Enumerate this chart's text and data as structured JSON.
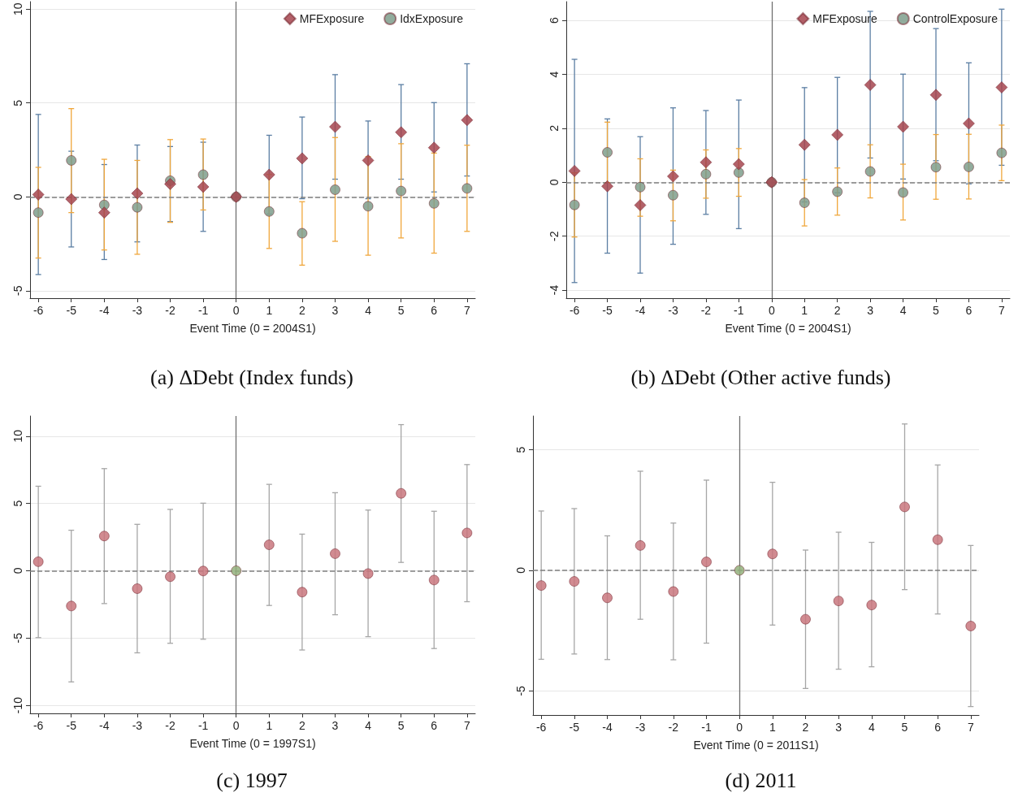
{
  "chart_data": [
    {
      "type": "scatter",
      "title": "(a) ΔDebt (Index funds)",
      "xlabel": "Event Time (0 = 2004S1)",
      "x": [
        -6,
        -5,
        -4,
        -3,
        -2,
        -1,
        0,
        1,
        2,
        3,
        4,
        5,
        6,
        7
      ],
      "xlim": [
        -6.25,
        7.25
      ],
      "xticks": [
        -6,
        -5,
        -4,
        -3,
        -2,
        -1,
        0,
        1,
        2,
        3,
        4,
        5,
        6,
        7
      ],
      "ylim": [
        -5.4,
        10.4
      ],
      "yticks": [
        -5,
        0,
        5,
        10
      ],
      "grid": "y",
      "legend": "top right",
      "ref_lines": [
        {
          "axis": "y",
          "value": 0,
          "color": "#808080",
          "line_style": "dashed"
        },
        {
          "axis": "x",
          "value": 0,
          "color": "#707070",
          "line_style": "solid"
        }
      ],
      "series": [
        {
          "name": "MFExposure",
          "marker": "diamond",
          "color": "#a6454f",
          "values": [
            0.12,
            -0.12,
            -0.84,
            0.18,
            0.68,
            0.53,
            0,
            1.18,
            2.05,
            3.73,
            1.94,
            3.44,
            2.62,
            4.09
          ],
          "errors": [
            [
              -4.14,
              4.39
            ],
            [
              -2.67,
              2.43
            ],
            [
              -3.34,
              1.72
            ],
            [
              -2.4,
              2.76
            ],
            [
              -1.32,
              2.68
            ],
            [
              -1.84,
              2.91
            ],
            null,
            [
              -0.92,
              3.28
            ],
            [
              -0.1,
              4.25
            ],
            [
              0.94,
              6.51
            ],
            [
              -0.1,
              4.04
            ],
            [
              0.94,
              5.98
            ],
            [
              0.26,
              5.02
            ],
            [
              1.11,
              7.09
            ]
          ]
        },
        {
          "name": "IdxExposure",
          "marker": "circle",
          "color": "#7f9e8c",
          "values": [
            -0.84,
            1.94,
            -0.43,
            -0.56,
            0.86,
            1.18,
            0,
            -0.78,
            -1.94,
            0.38,
            -0.5,
            0.31,
            -0.35,
            0.45
          ],
          "errors": [
            [
              -3.26,
              1.57
            ],
            [
              -0.84,
              4.7
            ],
            [
              -2.83,
              2
            ],
            [
              -3.06,
              1.94
            ],
            [
              -1.36,
              3.05
            ],
            [
              -0.7,
              3.08
            ],
            null,
            [
              -2.75,
              1.19
            ],
            [
              -3.64,
              -0.26
            ],
            [
              -2.37,
              3.16
            ],
            [
              -3.11,
              2.14
            ],
            [
              -2.19,
              2.83
            ],
            [
              -3,
              2.33
            ],
            [
              -1.84,
              2.75
            ]
          ]
        }
      ]
    },
    {
      "type": "scatter",
      "title": "(b) ΔDebt (Other active funds)",
      "xlabel": "Event Time (0 = 2004S1)",
      "x": [
        -6,
        -5,
        -4,
        -3,
        -2,
        -1,
        0,
        1,
        2,
        3,
        4,
        5,
        6,
        7
      ],
      "xlim": [
        -6.25,
        7.25
      ],
      "xticks": [
        -6,
        -5,
        -4,
        -3,
        -2,
        -1,
        0,
        1,
        2,
        3,
        4,
        5,
        6,
        7
      ],
      "ylim": [
        -4.3,
        6.7
      ],
      "yticks": [
        -4,
        -2,
        0,
        2,
        4,
        6
      ],
      "grid": "y",
      "legend": "top right",
      "ref_lines": [
        {
          "axis": "y",
          "value": 0,
          "color": "#808080",
          "line_style": "dashed"
        },
        {
          "axis": "x",
          "value": 0,
          "color": "#707070",
          "line_style": "solid"
        }
      ],
      "series": [
        {
          "name": "MFExposure",
          "marker": "diamond",
          "color": "#a6454f",
          "values": [
            0.42,
            -0.15,
            -0.85,
            0.22,
            0.74,
            0.67,
            0,
            1.39,
            1.76,
            3.61,
            2.06,
            3.24,
            2.18,
            3.52
          ],
          "errors": [
            [
              -3.72,
              4.56
            ],
            [
              -2.63,
              2.35
            ],
            [
              -3.37,
              1.69
            ],
            [
              -2.3,
              2.76
            ],
            [
              -1.19,
              2.66
            ],
            [
              -1.72,
              3.05
            ],
            null,
            [
              -0.73,
              3.51
            ],
            [
              -0.39,
              3.89
            ],
            [
              0.9,
              6.34
            ],
            [
              0.12,
              4.01
            ],
            [
              0.8,
              5.7
            ],
            [
              -0.06,
              4.43
            ],
            [
              0.63,
              6.42
            ]
          ]
        },
        {
          "name": "ControlExposure",
          "marker": "circle",
          "color": "#7f9e8c",
          "values": [
            -0.84,
            1.11,
            -0.18,
            -0.48,
            0.3,
            0.36,
            0,
            -0.76,
            -0.35,
            0.4,
            -0.38,
            0.56,
            0.57,
            1.09
          ],
          "errors": [
            [
              -2.03,
              0.35
            ],
            [
              -0.01,
              2.23
            ],
            [
              -1.26,
              0.87
            ],
            [
              -1.43,
              0.45
            ],
            [
              -0.59,
              1.2
            ],
            [
              -0.52,
              1.25
            ],
            null,
            [
              -1.62,
              0.1
            ],
            [
              -1.22,
              0.53
            ],
            [
              -0.58,
              1.39
            ],
            [
              -1.4,
              0.67
            ],
            [
              -0.63,
              1.77
            ],
            [
              -0.62,
              1.78
            ],
            [
              0.06,
              2.12
            ]
          ]
        }
      ]
    },
    {
      "type": "scatter",
      "title": "(c) 1997",
      "xlabel": "Event Time (0 = 1997S1)",
      "x": [
        -6,
        -5,
        -4,
        -3,
        -2,
        -1,
        0,
        1,
        2,
        3,
        4,
        5,
        6,
        7
      ],
      "xlim": [
        -6.25,
        7.25
      ],
      "xticks": [
        -6,
        -5,
        -4,
        -3,
        -2,
        -1,
        0,
        1,
        2,
        3,
        4,
        5,
        6,
        7
      ],
      "ylim": [
        -10.6,
        11.5
      ],
      "yticks": [
        -10,
        -5,
        0,
        5,
        10
      ],
      "grid": "y",
      "ref_lines": [
        {
          "axis": "y",
          "value": 0,
          "color": "#808080",
          "line_style": "dashed"
        },
        {
          "axis": "x",
          "value": 0,
          "color": "#707070",
          "line_style": "solid"
        }
      ],
      "series": [
        {
          "marker": "circle",
          "color": "#c9777e",
          "colors": [
            "#c9777e",
            "#c9777e",
            "#c9777e",
            "#c9777e",
            "#c9777e",
            "#c9777e",
            "#93b07c",
            "#c9777e",
            "#c9777e",
            "#c9777e",
            "#c9777e",
            "#c9777e",
            "#c9777e",
            "#c9777e"
          ],
          "values": [
            0.67,
            -2.62,
            2.58,
            -1.33,
            -0.44,
            -0.02,
            0,
            1.93,
            -1.59,
            1.27,
            -0.21,
            5.75,
            -0.69,
            2.81
          ],
          "errors": [
            [
              -4.97,
              6.28
            ],
            [
              -8.26,
              3.01
            ],
            [
              -2.44,
              7.59
            ],
            [
              -6.1,
              3.45
            ],
            [
              -5.39,
              4.56
            ],
            [
              -5.09,
              5.02
            ],
            null,
            [
              -2.58,
              6.42
            ],
            [
              -5.89,
              2.72
            ],
            [
              -3.27,
              5.8
            ],
            [
              -4.9,
              4.51
            ],
            [
              0.62,
              10.86
            ],
            [
              -5.78,
              4.42
            ],
            [
              -2.3,
              7.89
            ]
          ]
        }
      ]
    },
    {
      "type": "scatter",
      "title": "(d) 2011",
      "xlabel": "Event Time (0 = 2011S1)",
      "x": [
        -6,
        -5,
        -4,
        -3,
        -2,
        -1,
        0,
        1,
        2,
        3,
        4,
        5,
        6,
        7
      ],
      "xlim": [
        -6.25,
        7.25
      ],
      "xticks": [
        -6,
        -5,
        -4,
        -3,
        -2,
        -1,
        0,
        1,
        2,
        3,
        4,
        5,
        6,
        7
      ],
      "ylim": [
        -6,
        6.4
      ],
      "yticks": [
        -5,
        0,
        5
      ],
      "grid": "y",
      "ref_lines": [
        {
          "axis": "y",
          "value": 0,
          "color": "#808080",
          "line_style": "dashed"
        },
        {
          "axis": "x",
          "value": 0,
          "color": "#707070",
          "line_style": "solid"
        }
      ],
      "series": [
        {
          "marker": "circle",
          "color": "#c9777e",
          "colors": [
            "#c9777e",
            "#c9777e",
            "#c9777e",
            "#c9777e",
            "#c9777e",
            "#c9777e",
            "#93b07c",
            "#c9777e",
            "#c9777e",
            "#c9777e",
            "#c9777e",
            "#c9777e",
            "#c9777e",
            "#c9777e"
          ],
          "values": [
            -0.63,
            -0.46,
            -1.14,
            1.03,
            -0.88,
            0.35,
            0,
            0.68,
            -2.03,
            -1.27,
            -1.44,
            2.63,
            1.27,
            -2.31
          ],
          "errors": [
            [
              -3.69,
              2.46
            ],
            [
              -3.47,
              2.56
            ],
            [
              -3.7,
              1.43
            ],
            [
              -2.03,
              4.11
            ],
            [
              -3.71,
              1.96
            ],
            [
              -3.02,
              3.74
            ],
            null,
            [
              -2.27,
              3.65
            ],
            [
              -4.9,
              0.84
            ],
            [
              -4.1,
              1.58
            ],
            [
              -4,
              1.16
            ],
            [
              -0.8,
              6.07
            ],
            [
              -1.81,
              4.37
            ],
            [
              -5.65,
              1.03
            ]
          ]
        }
      ]
    }
  ]
}
